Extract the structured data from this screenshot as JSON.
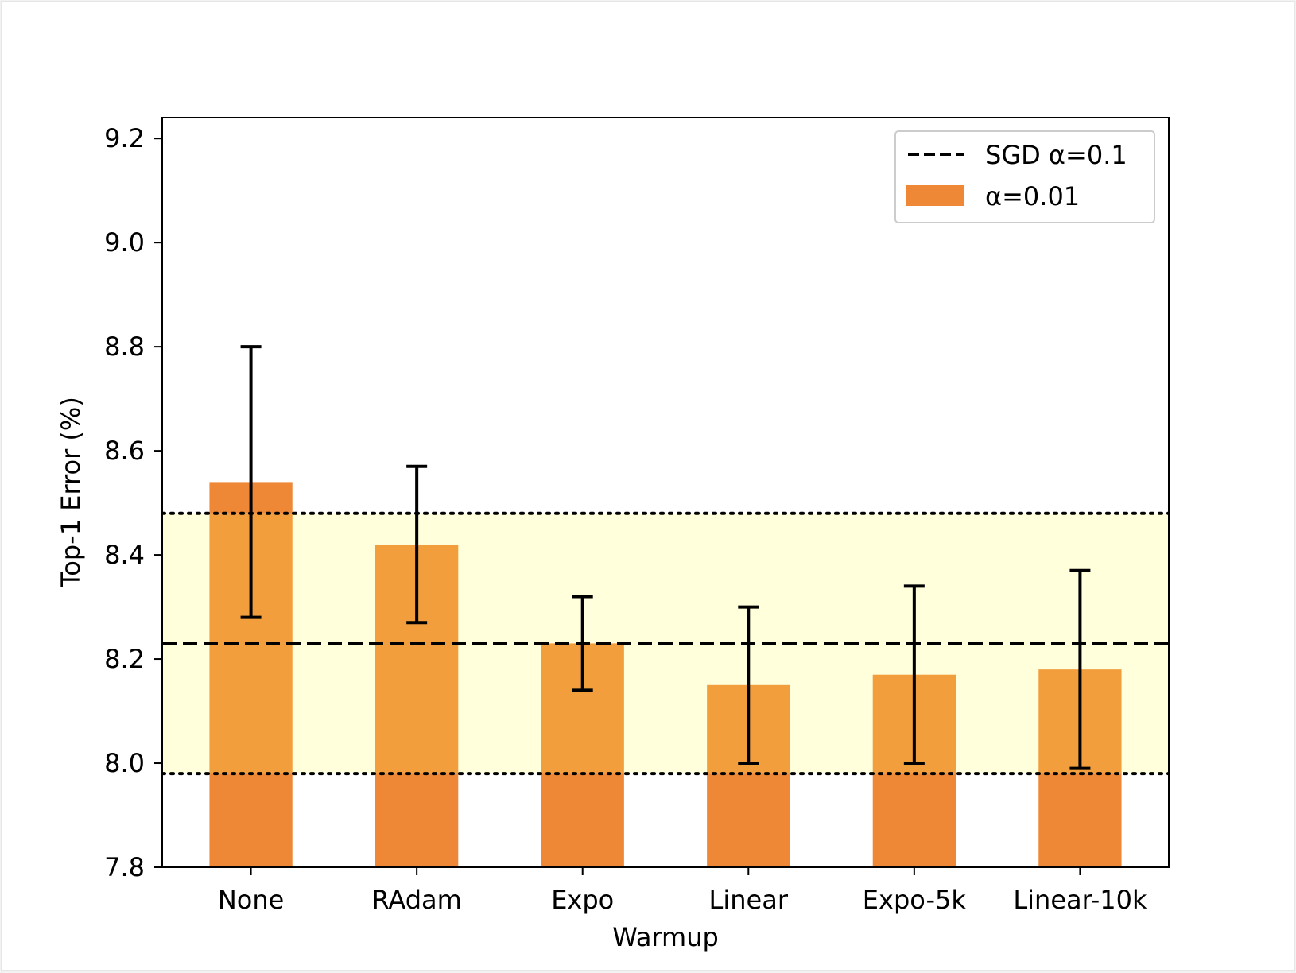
{
  "chart_data": {
    "type": "bar",
    "title": "",
    "xlabel": "Warmup",
    "ylabel": "Top-1 Error (%)",
    "ylim": [
      7.8,
      9.24
    ],
    "yticks": [
      "7.8",
      "8.0",
      "8.2",
      "8.4",
      "8.6",
      "8.8",
      "9.0",
      "9.2"
    ],
    "ytick_values": [
      7.8,
      8.0,
      8.2,
      8.4,
      8.6,
      8.8,
      9.0,
      9.2
    ],
    "categories": [
      "None",
      "RAdam",
      "Expo",
      "Linear",
      "Expo-5k",
      "Linear-10k"
    ],
    "series": [
      {
        "name": "α=0.01",
        "values": [
          8.54,
          8.42,
          8.23,
          8.15,
          8.17,
          8.18
        ],
        "err_low": [
          8.28,
          8.27,
          8.14,
          8.0,
          8.0,
          7.99
        ],
        "err_high": [
          8.8,
          8.57,
          8.32,
          8.3,
          8.34,
          8.37
        ]
      }
    ],
    "reference_line": {
      "name": "SGD α=0.1",
      "value": 8.23,
      "band_low": 7.98,
      "band_high": 8.48
    },
    "legend": {
      "placement": "top-right",
      "entries": [
        "SGD α=0.1",
        "α=0.01"
      ]
    },
    "grid": false
  },
  "colors": {
    "bar_outside_band": "#ee8836",
    "bar_inside_band": "#f29e3d",
    "band_fill": "#ffffdc",
    "reference_line": "#000000",
    "error_bar": "#000000"
  }
}
